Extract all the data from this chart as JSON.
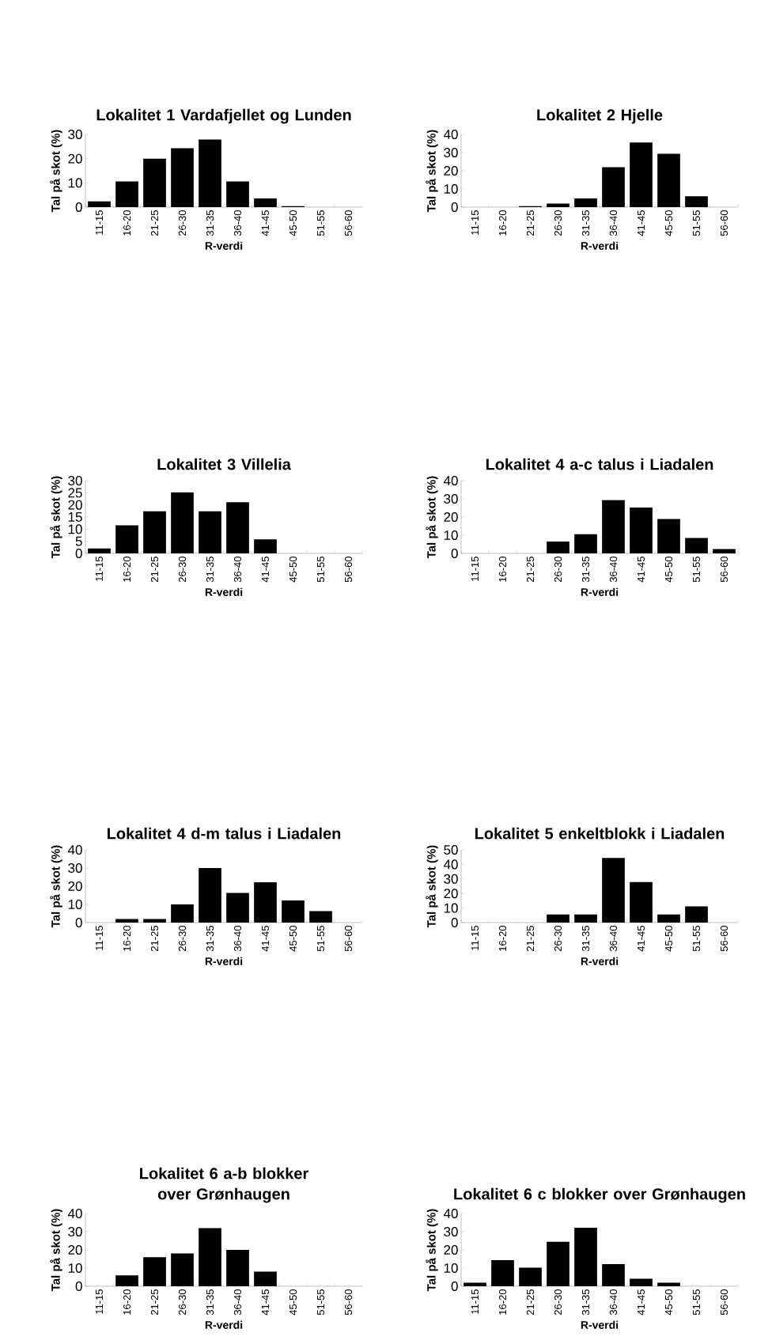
{
  "chart_data": [
    {
      "type": "bar",
      "title": "Lokalitet 1 Vardafjellet og Lunden",
      "xlabel": "R-verdi",
      "ylabel": "Tal på skot  (%)",
      "categories": [
        "11-15",
        "16-20",
        "21-25",
        "26-30",
        "31-35",
        "36-40",
        "41-45",
        "45-50",
        "51-55",
        "56-60"
      ],
      "values": [
        2.4,
        10.6,
        20,
        24.3,
        27.9,
        10.6,
        3.6,
        0.4,
        0,
        0
      ],
      "color": "#000000",
      "ylim": [
        0,
        30
      ],
      "yticks": [
        0,
        10,
        20,
        30
      ]
    },
    {
      "type": "bar",
      "title": "Lokalitet 2 Hjelle",
      "xlabel": "R-verdi",
      "ylabel": "Tal på skot  (%)",
      "categories": [
        "11-15",
        "16-20",
        "21-25",
        "26-30",
        "31-35",
        "36-40",
        "41-45",
        "45-50",
        "51-55",
        "56-60"
      ],
      "values": [
        0,
        0,
        0.5,
        2,
        4.8,
        22,
        35.5,
        29.3,
        6,
        0
      ],
      "color": "#000000",
      "ylim": [
        0,
        40
      ],
      "yticks": [
        0,
        10,
        20,
        30,
        40
      ]
    },
    {
      "type": "bar",
      "title": "Lokalitet 3 Villelia",
      "xlabel": "R-verdi",
      "ylabel": "Tal på skot  (%)",
      "categories": [
        "11-15",
        "16-20",
        "21-25",
        "26-30",
        "31-35",
        "36-40",
        "41-45",
        "45-50",
        "51-55",
        "56-60"
      ],
      "values": [
        2,
        11.6,
        17.4,
        25.2,
        17.4,
        21.1,
        5.8,
        0,
        0,
        0
      ],
      "color": "#000000",
      "ylim": [
        0,
        30
      ],
      "yticks": [
        0,
        5,
        10,
        15,
        20,
        25,
        30
      ]
    },
    {
      "type": "bar",
      "title": "Lokalitet 4 a-c talus i Liadalen",
      "xlabel": "R-verdi",
      "ylabel": "Tal på skot  (%)",
      "categories": [
        "11-15",
        "16-20",
        "21-25",
        "26-30",
        "31-35",
        "36-40",
        "41-45",
        "45-50",
        "51-55",
        "56-60"
      ],
      "values": [
        0,
        0,
        0,
        6.5,
        10.5,
        29.3,
        25.2,
        18.9,
        8.5,
        2.4
      ],
      "color": "#000000",
      "ylim": [
        0,
        40
      ],
      "yticks": [
        0,
        10,
        20,
        30,
        40
      ]
    },
    {
      "type": "bar",
      "title": "Lokalitet 4 d-m talus i Liadalen",
      "xlabel": "R-verdi",
      "ylabel": "Tal på skot  (%)",
      "categories": [
        "11-15",
        "16-20",
        "21-25",
        "26-30",
        "31-35",
        "36-40",
        "41-45",
        "45-50",
        "51-55",
        "56-60"
      ],
      "values": [
        0,
        2,
        2,
        10,
        30,
        16.3,
        22.2,
        12.2,
        6.3,
        0
      ],
      "color": "#000000",
      "ylim": [
        0,
        40
      ],
      "yticks": [
        0,
        10,
        20,
        30,
        40
      ]
    },
    {
      "type": "bar",
      "title": "Lokalitet 5 enkeltblokk i Liadalen",
      "xlabel": "R-verdi",
      "ylabel": "Tal på skot  (%)",
      "categories": [
        "11-15",
        "16-20",
        "21-25",
        "26-30",
        "31-35",
        "36-40",
        "41-45",
        "45-50",
        "51-55",
        "56-60"
      ],
      "values": [
        0,
        0,
        0,
        5.5,
        5.5,
        44.4,
        27.8,
        5.5,
        11.1,
        0
      ],
      "color": "#000000",
      "ylim": [
        0,
        50
      ],
      "yticks": [
        0,
        10,
        20,
        30,
        40,
        50
      ]
    },
    {
      "type": "bar",
      "title": "Lokalitet 6 a-b blokker over Grønhaugen",
      "xlabel": "R-verdi",
      "ylabel": "Tal på skot  (%)",
      "categories": [
        "11-15",
        "16-20",
        "21-25",
        "26-30",
        "31-35",
        "36-40",
        "41-45",
        "45-50",
        "51-55",
        "56-60"
      ],
      "values": [
        0,
        6,
        16,
        18,
        32,
        20,
        8,
        0,
        0,
        0
      ],
      "color": "#000000",
      "ylim": [
        0,
        40
      ],
      "yticks": [
        0,
        10,
        20,
        30,
        40
      ]
    },
    {
      "type": "bar",
      "title": "Lokalitet 6 c blokker over Grønhaugen",
      "xlabel": "R-verdi",
      "ylabel": "Tal på skot  (%)",
      "categories": [
        "11-15",
        "16-20",
        "21-25",
        "26-30",
        "31-35",
        "36-40",
        "41-45",
        "45-50",
        "51-55",
        "56-60"
      ],
      "values": [
        2,
        14.3,
        10.2,
        24.4,
        32.2,
        12.2,
        4.1,
        2,
        0,
        0
      ],
      "color": "#000000",
      "ylim": [
        0,
        40
      ],
      "yticks": [
        0,
        10,
        20,
        30,
        40
      ]
    }
  ]
}
